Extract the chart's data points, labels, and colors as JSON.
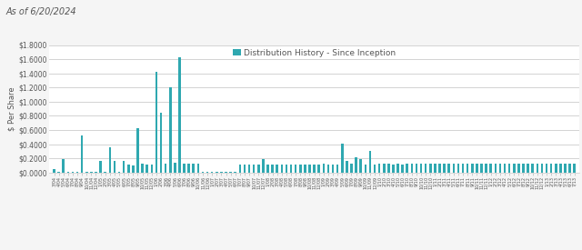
{
  "title_topleft": "As of 6/20/2024",
  "legend_label": "Distribution History - Since Inception",
  "bar_color": "#2fa8b0",
  "plot_bg_color": "#e8e8e8",
  "outer_bg_color": "#f5f5f5",
  "chart_panel_color": "#ffffff",
  "ylabel": "$ Per Share",
  "ylim": [
    0,
    1.8
  ],
  "yticks": [
    0.0,
    0.2,
    0.4,
    0.6,
    0.8,
    1.0,
    1.2,
    1.4,
    1.6,
    1.8
  ],
  "ytick_labels": [
    "$0.0000",
    "$0.2000",
    "$0.4000",
    "$0.6000",
    "$0.8000",
    "$1.0000",
    "$1.2000",
    "$1.4000",
    "$1.6000",
    "$1.8000"
  ],
  "values": [
    0.05,
    0.01,
    0.19,
    0.01,
    0.01,
    0.01,
    0.52,
    0.01,
    0.01,
    0.01,
    0.17,
    0.01,
    0.35,
    0.17,
    0.01,
    0.16,
    0.11,
    0.1,
    0.63,
    0.13,
    0.11,
    0.11,
    1.42,
    0.84,
    0.13,
    1.2,
    0.14,
    1.63,
    0.13,
    0.13,
    0.12,
    0.12,
    0.01,
    0.01,
    0.01,
    0.01,
    0.01,
    0.01,
    0.01,
    0.01,
    0.11,
    0.11,
    0.11,
    0.11,
    0.11,
    0.19,
    0.11,
    0.11,
    0.11,
    0.11,
    0.11,
    0.11,
    0.11,
    0.11,
    0.11,
    0.11,
    0.11,
    0.11,
    0.13,
    0.11,
    0.11,
    0.11,
    0.41,
    0.17,
    0.12,
    0.21,
    0.19,
    0.11,
    0.31,
    0.11,
    0.12,
    0.13,
    0.12,
    0.11,
    0.12,
    0.11,
    0.12,
    0.12,
    0.12,
    0.12,
    0.12,
    0.12,
    0.12,
    0.12,
    0.12,
    0.12,
    0.12,
    0.12,
    0.12,
    0.12,
    0.12,
    0.12,
    0.12,
    0.12,
    0.12,
    0.12,
    0.12,
    0.12,
    0.12,
    0.12,
    0.12,
    0.12,
    0.12,
    0.12,
    0.12,
    0.12,
    0.12,
    0.12,
    0.12,
    0.12,
    0.12,
    0.12,
    0.12
  ],
  "title_fontsize": 7,
  "legend_fontsize": 6.5,
  "ytick_fontsize": 5.5,
  "ylabel_fontsize": 6,
  "xtick_fontsize": 3.5
}
